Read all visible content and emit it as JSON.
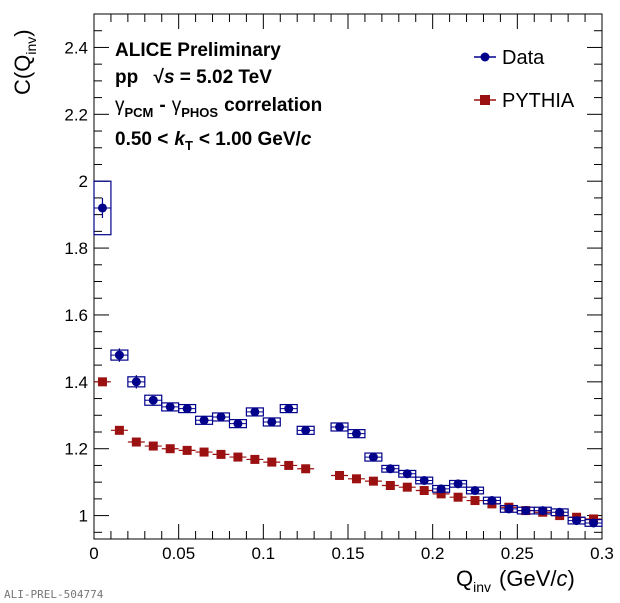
{
  "chart_data": {
    "type": "scatter",
    "annotations": {
      "line1": "ALICE Preliminary",
      "line2_pre": "pp",
      "line2_post": "= 5.02 TeV",
      "line3_gamma1": "γ",
      "line3_sub1": "PCM",
      "line3_dash": "-",
      "line3_gamma2": "γ",
      "line3_sub2": "PHOS",
      "line3_word": "correlation",
      "line4_pre": "0.50 <",
      "line4_k": "k",
      "line4_ksub": "T",
      "line4_post": "< 1.00 GeV/",
      "line4_c": "c"
    },
    "ylabel": {
      "main": "C(Q",
      "sub": "inv",
      "close": ")"
    },
    "xlabel": {
      "main": "Q",
      "sub": "inv",
      "unit": "(GeV/",
      "c": "c",
      "close": ")"
    },
    "watermark": "ALI-PREL-504774",
    "xlim": [
      0,
      0.3
    ],
    "ylim": [
      0.93,
      2.5
    ],
    "xticks": [
      0,
      0.05,
      0.1,
      0.15,
      0.2,
      0.25,
      0.3
    ],
    "xtick_labels": [
      "0",
      "0.05",
      "0.1",
      "0.15",
      "0.2",
      "0.25",
      "0.3"
    ],
    "yticks": [
      1,
      1.2,
      1.4,
      1.6,
      1.8,
      2,
      2.2,
      2.4
    ],
    "ytick_labels": [
      "1",
      "1.2",
      "1.4",
      "1.6",
      "1.8",
      "2",
      "2.2",
      "2.4"
    ],
    "legend_position": "top-right",
    "series": [
      {
        "name": "Data",
        "color": "#00008b",
        "marker": "circle",
        "x": [
          0.005,
          0.015,
          0.025,
          0.035,
          0.045,
          0.055,
          0.065,
          0.075,
          0.085,
          0.095,
          0.105,
          0.115,
          0.125,
          0.145,
          0.155,
          0.165,
          0.175,
          0.185,
          0.195,
          0.205,
          0.215,
          0.225,
          0.235,
          0.245,
          0.255,
          0.265,
          0.275,
          0.285,
          0.295
        ],
        "y": [
          1.92,
          1.48,
          1.4,
          1.345,
          1.325,
          1.32,
          1.285,
          1.295,
          1.275,
          1.31,
          1.28,
          1.32,
          1.255,
          1.265,
          1.245,
          1.175,
          1.14,
          1.125,
          1.105,
          1.08,
          1.095,
          1.075,
          1.045,
          1.02,
          1.015,
          1.015,
          1.01,
          0.985,
          0.978
        ],
        "stat_err": [
          0.03,
          0.02,
          0.02,
          0.01,
          0.01,
          0.01,
          0.01,
          0.01,
          0.01,
          0.01,
          0.01,
          0.01,
          0.01,
          0.01,
          0.01,
          0.01,
          0.01,
          0.01,
          0.01,
          0.01,
          0.01,
          0.01,
          0.01,
          0.005,
          0.005,
          0.005,
          0.005,
          0.005,
          0.005
        ],
        "sys_err": [
          0.08,
          0.015,
          0.015,
          0.015,
          0.012,
          0.012,
          0.012,
          0.012,
          0.012,
          0.012,
          0.012,
          0.012,
          0.012,
          0.012,
          0.012,
          0.012,
          0.01,
          0.01,
          0.01,
          0.01,
          0.01,
          0.01,
          0.01,
          0.01,
          0.01,
          0.01,
          0.01,
          0.01,
          0.01
        ]
      },
      {
        "name": "PYTHIA",
        "color": "#9b1111",
        "marker": "square",
        "x": [
          0.005,
          0.015,
          0.025,
          0.035,
          0.045,
          0.055,
          0.065,
          0.075,
          0.085,
          0.095,
          0.105,
          0.115,
          0.125,
          0.145,
          0.155,
          0.165,
          0.175,
          0.185,
          0.195,
          0.205,
          0.215,
          0.225,
          0.235,
          0.245,
          0.255,
          0.265,
          0.275,
          0.285,
          0.295
        ],
        "y": [
          1.4,
          1.255,
          1.22,
          1.208,
          1.2,
          1.195,
          1.19,
          1.183,
          1.175,
          1.168,
          1.16,
          1.15,
          1.14,
          1.12,
          1.11,
          1.103,
          1.09,
          1.085,
          1.075,
          1.065,
          1.055,
          1.045,
          1.035,
          1.025,
          1.015,
          1.01,
          1.0,
          0.995,
          0.99
        ]
      }
    ]
  }
}
